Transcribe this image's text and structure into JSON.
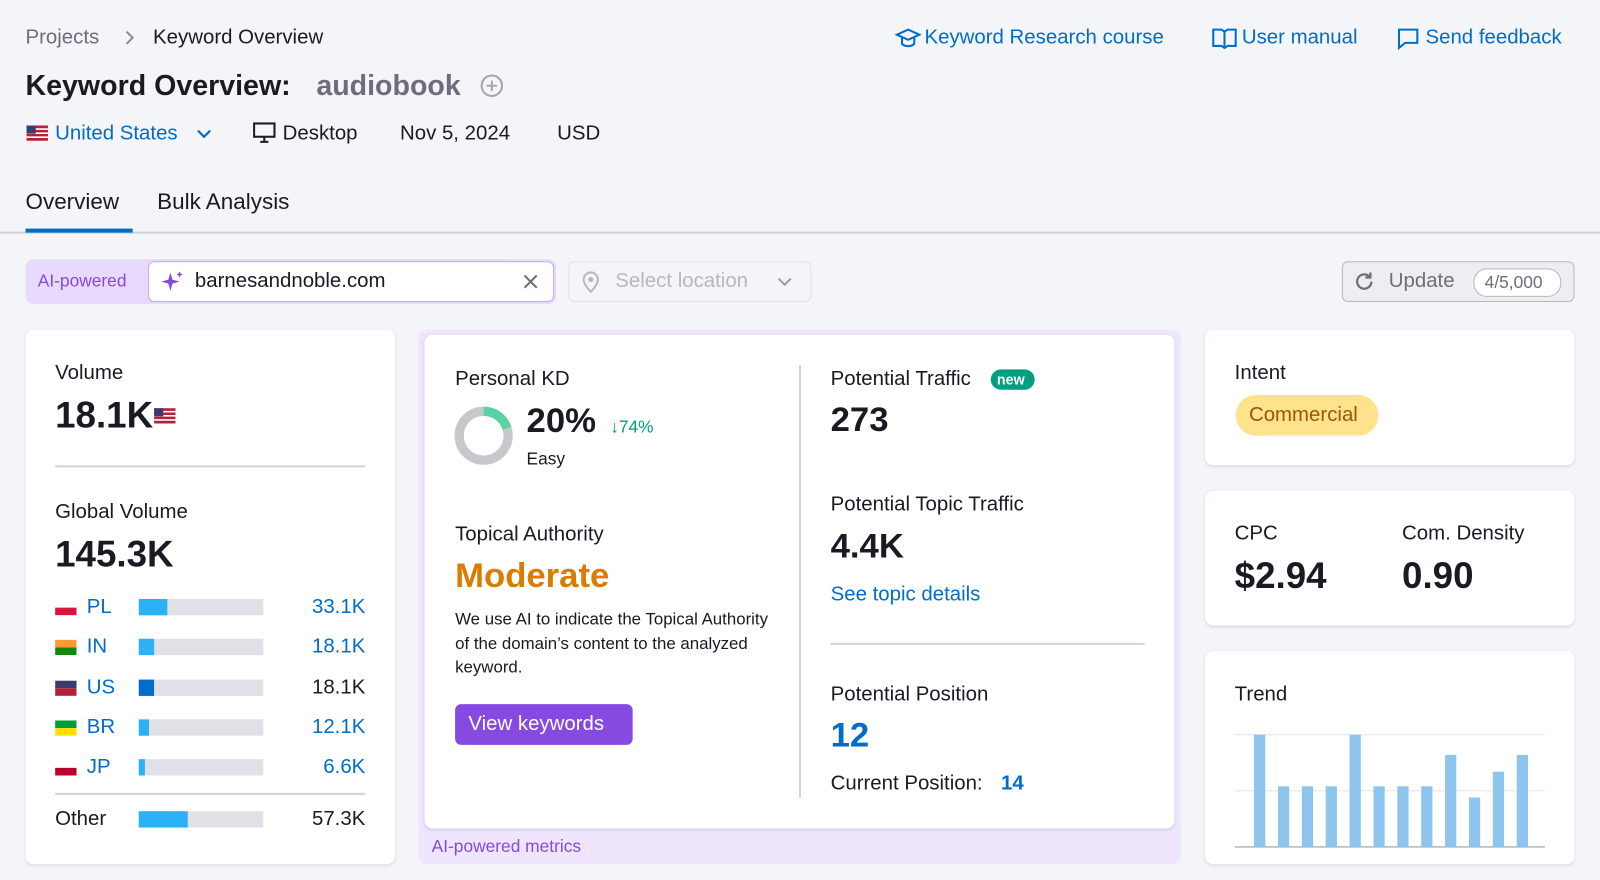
{
  "breadcrumb": [
    "Projects",
    "Keyword Overview"
  ],
  "header_links": [
    "Keyword Research course",
    "User manual",
    "Send feedback"
  ],
  "title": {
    "label": "Keyword Overview:",
    "keyword": "audiobook"
  },
  "meta": {
    "country": "United States",
    "device": "Desktop",
    "date": "Nov 5, 2024",
    "currency": "USD"
  },
  "tabs": [
    "Overview",
    "Bulk Analysis"
  ],
  "search": {
    "badge": "AI-powered",
    "domain": "barnesandnoble.com",
    "location_placeholder": "Select location",
    "update": "Update",
    "quota": "4/5,000"
  },
  "volume": {
    "label": "Volume",
    "value": "18.1K"
  },
  "global_volume": {
    "label": "Global Volume",
    "total": {
      "value": 145300,
      "label": "145.3K"
    },
    "countries": [
      {
        "code": "PL",
        "value": 33100,
        "label": "33.1K"
      },
      {
        "code": "IN",
        "value": 18100,
        "label": "18.1K"
      },
      {
        "code": "US",
        "value": 18100,
        "label": "18.1K"
      },
      {
        "code": "BR",
        "value": 12100,
        "label": "12.1K"
      },
      {
        "code": "JP",
        "value": 6600,
        "label": "6.6K"
      }
    ],
    "other": {
      "name": "Other",
      "value": 57300,
      "label": "57.3K"
    }
  },
  "personal_kd": {
    "label": "Personal KD",
    "value": 20,
    "value_label": "20%",
    "change": "↓74%",
    "difficulty": "Easy"
  },
  "topical_authority": {
    "label": "Topical Authority",
    "value": "Moderate",
    "description": "We use AI to indicate the Topical Authority of the domain’s content to the analyzed keyword.",
    "button": "View keywords"
  },
  "potential_traffic": {
    "label": "Potential Traffic",
    "badge": "new",
    "value": "273"
  },
  "potential_topic_traffic": {
    "label": "Potential Topic Traffic",
    "value": "4.4K",
    "link": "See topic details"
  },
  "potential_position": {
    "label": "Potential Position",
    "value": "12",
    "current_label": "Current Position:",
    "current_value": "14"
  },
  "ai_footer": "AI-powered metrics",
  "intent": {
    "label": "Intent",
    "value": "Commercial"
  },
  "cpc": {
    "label": "CPC",
    "value": "$2.94"
  },
  "com_density": {
    "label": "Com. Density",
    "value": "0.90"
  },
  "trend": {
    "label": "Trend",
    "values": [
      1,
      0.54,
      0.54,
      0.54,
      1,
      0.54,
      0.54,
      0.54,
      0.82,
      0.44,
      0.67,
      0.82
    ],
    "ylim": [
      0,
      1
    ],
    "yticks": [
      0,
      0.5,
      1
    ]
  }
}
